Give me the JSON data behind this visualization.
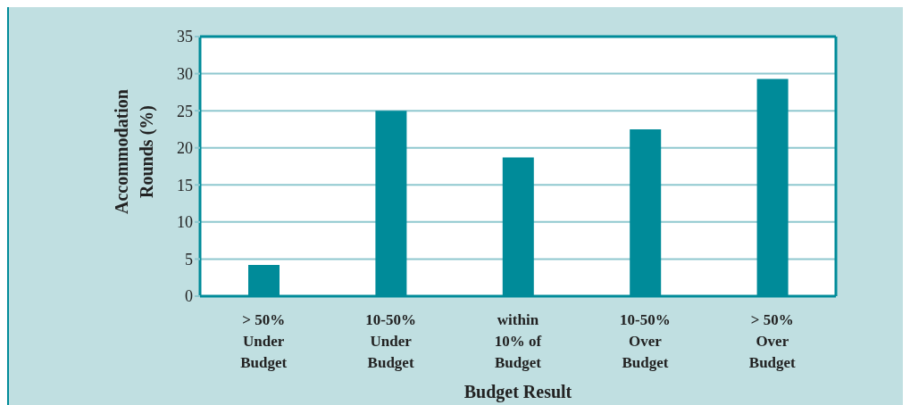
{
  "chart_data": {
    "type": "bar",
    "xlabel": "Budget Result",
    "ylabel": "Accommodation\nRounds (%)",
    "categories": [
      "> 50%\nUnder\nBudget",
      "10-50%\nUnder\nBudget",
      "within\n10% of\nBudget",
      "10-50%\nOver\nBudget",
      "> 50%\nOver\nBudget"
    ],
    "values": [
      4.2,
      25,
      18.7,
      22.5,
      29.3
    ],
    "color": "#008b99",
    "ylim": [
      0,
      35
    ],
    "yticks": [
      0,
      5,
      10,
      15,
      20,
      25,
      30,
      35
    ],
    "grid": "y"
  }
}
